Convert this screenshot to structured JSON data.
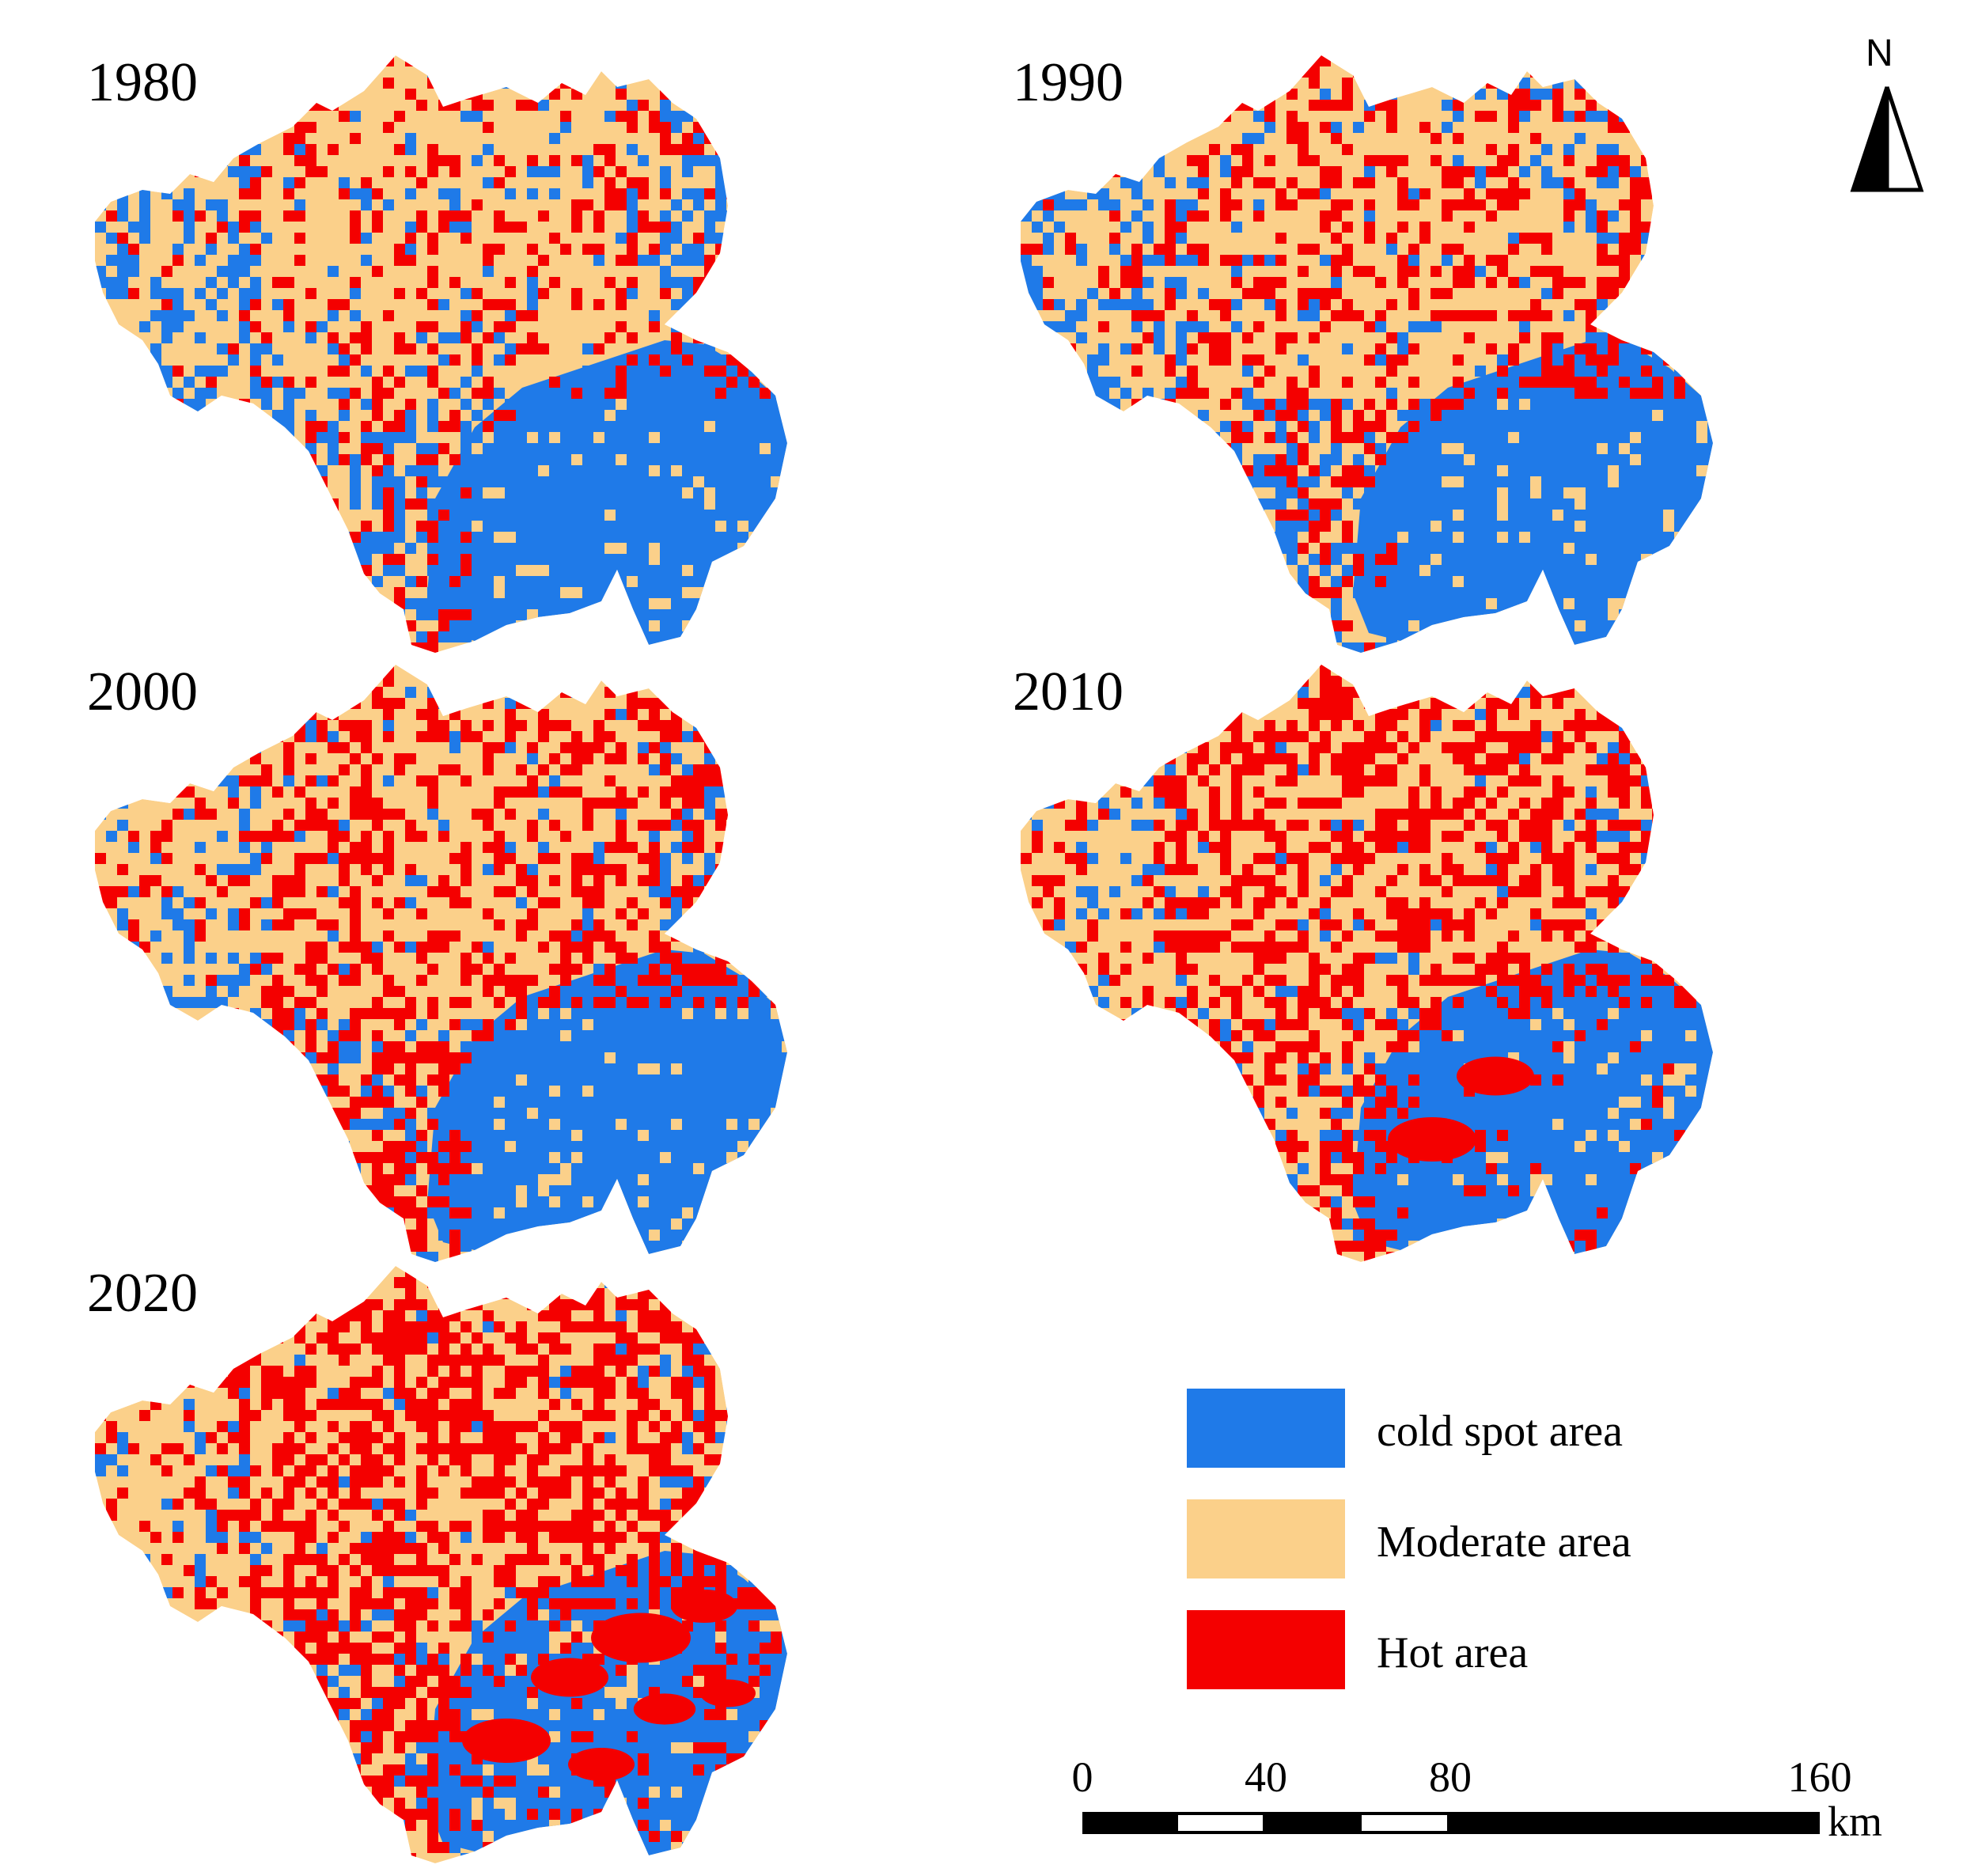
{
  "colors": {
    "cold": "#1f7ae8",
    "moderate": "#fbd08a",
    "hot": "#f40000",
    "ink": "#000000",
    "white": "#ffffff"
  },
  "panels": [
    {
      "year": "1980",
      "hot_level": 0.22,
      "cold_level": 0.35,
      "hot_in_cold": 0.0
    },
    {
      "year": "1990",
      "hot_level": 0.3,
      "cold_level": 0.28,
      "hot_in_cold": 0.0
    },
    {
      "year": "2000",
      "hot_level": 0.4,
      "cold_level": 0.18,
      "hot_in_cold": 0.0
    },
    {
      "year": "2010",
      "hot_level": 0.45,
      "cold_level": 0.14,
      "hot_in_cold": 0.12
    },
    {
      "year": "2020",
      "hot_level": 0.5,
      "cold_level": 0.12,
      "hot_in_cold": 0.35
    }
  ],
  "legend": {
    "items": [
      {
        "label": "cold spot area",
        "color": "#1f7ae8"
      },
      {
        "label": "Moderate area",
        "color": "#fbd08a"
      },
      {
        "label": "Hot area",
        "color": "#f40000"
      }
    ]
  },
  "scalebar": {
    "ticks": [
      "0",
      "40",
      "80",
      "160"
    ],
    "unit": "km"
  },
  "north_arrow": {
    "letter": "N",
    "icon": "north-arrow-icon"
  }
}
